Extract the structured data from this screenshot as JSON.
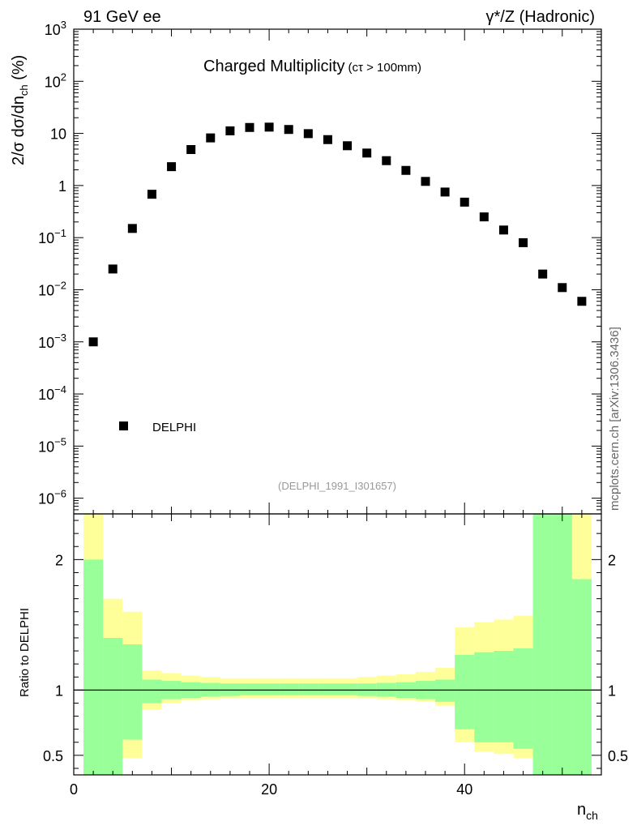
{
  "header": {
    "left": "91 GeV ee",
    "right": "γ*/Z (Hadronic)"
  },
  "side_label": "mcplots.cern.ch [arXiv:1306.3436]",
  "chart_data": [
    {
      "type": "scatter",
      "title": "Charged Multiplicity",
      "title_suffix": "(cτ > 100mm)",
      "ylabel": "2/σ dσ/dn",
      "ylabel_sub": "ch",
      "ylabel_unit": "(%)",
      "yscale": "log",
      "ylim": [
        5e-07,
        1000
      ],
      "xlim": [
        0,
        54
      ],
      "y_ticks": [
        "10^-6",
        "10^-5",
        "10^-4",
        "10^-3",
        "10^-2",
        "10^-1",
        "1",
        "10",
        "10^2",
        "10^3"
      ],
      "legend": {
        "entry": "DELPHI",
        "placement": "bottom-left"
      },
      "reference": "(DELPHI_1991_I301657)",
      "series": [
        {
          "name": "DELPHI",
          "x": [
            2,
            4,
            6,
            8,
            10,
            12,
            14,
            16,
            18,
            20,
            22,
            24,
            26,
            28,
            30,
            32,
            34,
            36,
            38,
            40,
            42,
            44,
            46,
            48,
            50,
            52
          ],
          "y": [
            0.001,
            0.025,
            0.15,
            0.68,
            2.3,
            4.9,
            8.2,
            11.2,
            13.0,
            13.2,
            11.9,
            9.9,
            7.6,
            5.8,
            4.2,
            3.0,
            1.95,
            1.2,
            0.75,
            0.48,
            0.25,
            0.14,
            0.08,
            0.02,
            0.011,
            0.006
          ]
        }
      ]
    },
    {
      "type": "area",
      "ylabel": "Ratio to DELPHI",
      "xlabel": "n",
      "xlabel_sub": "ch",
      "xlim": [
        0,
        54
      ],
      "ylim": [
        0.35,
        2.35
      ],
      "x_ticks": [
        "0",
        "20",
        "40"
      ],
      "y_ticks": [
        "0.5",
        "1",
        "2"
      ],
      "reference_line": 1,
      "bins": [
        1,
        3,
        5,
        7,
        9,
        11,
        13,
        15,
        17,
        19,
        21,
        23,
        25,
        27,
        29,
        31,
        33,
        35,
        37,
        39,
        41,
        43,
        45,
        47,
        49,
        51,
        53
      ],
      "band_inner": {
        "color": "#99ff99",
        "lo": [
          0.0,
          0.3,
          0.62,
          0.9,
          0.93,
          0.94,
          0.95,
          0.955,
          0.96,
          0.96,
          0.96,
          0.96,
          0.96,
          0.96,
          0.955,
          0.95,
          0.94,
          0.93,
          0.91,
          0.7,
          0.6,
          0.6,
          0.55,
          0.0,
          0.0,
          0.0
        ],
        "hi": [
          2.0,
          1.4,
          1.35,
          1.08,
          1.07,
          1.06,
          1.055,
          1.05,
          1.05,
          1.05,
          1.05,
          1.05,
          1.05,
          1.05,
          1.05,
          1.055,
          1.06,
          1.07,
          1.08,
          1.27,
          1.29,
          1.3,
          1.32,
          2.4,
          2.4,
          1.85
        ]
      },
      "band_outer": {
        "color": "#ffff99",
        "lo": [
          0.0,
          0.0,
          0.48,
          0.85,
          0.9,
          0.92,
          0.93,
          0.935,
          0.94,
          0.94,
          0.94,
          0.94,
          0.94,
          0.94,
          0.935,
          0.93,
          0.92,
          0.91,
          0.88,
          0.6,
          0.53,
          0.51,
          0.48,
          0.0,
          0.0,
          0.0
        ],
        "hi": [
          2.4,
          1.7,
          1.6,
          1.15,
          1.13,
          1.11,
          1.1,
          1.09,
          1.09,
          1.09,
          1.09,
          1.09,
          1.09,
          1.09,
          1.1,
          1.11,
          1.12,
          1.14,
          1.17,
          1.48,
          1.52,
          1.54,
          1.57,
          2.4,
          2.4,
          2.4
        ]
      }
    }
  ]
}
